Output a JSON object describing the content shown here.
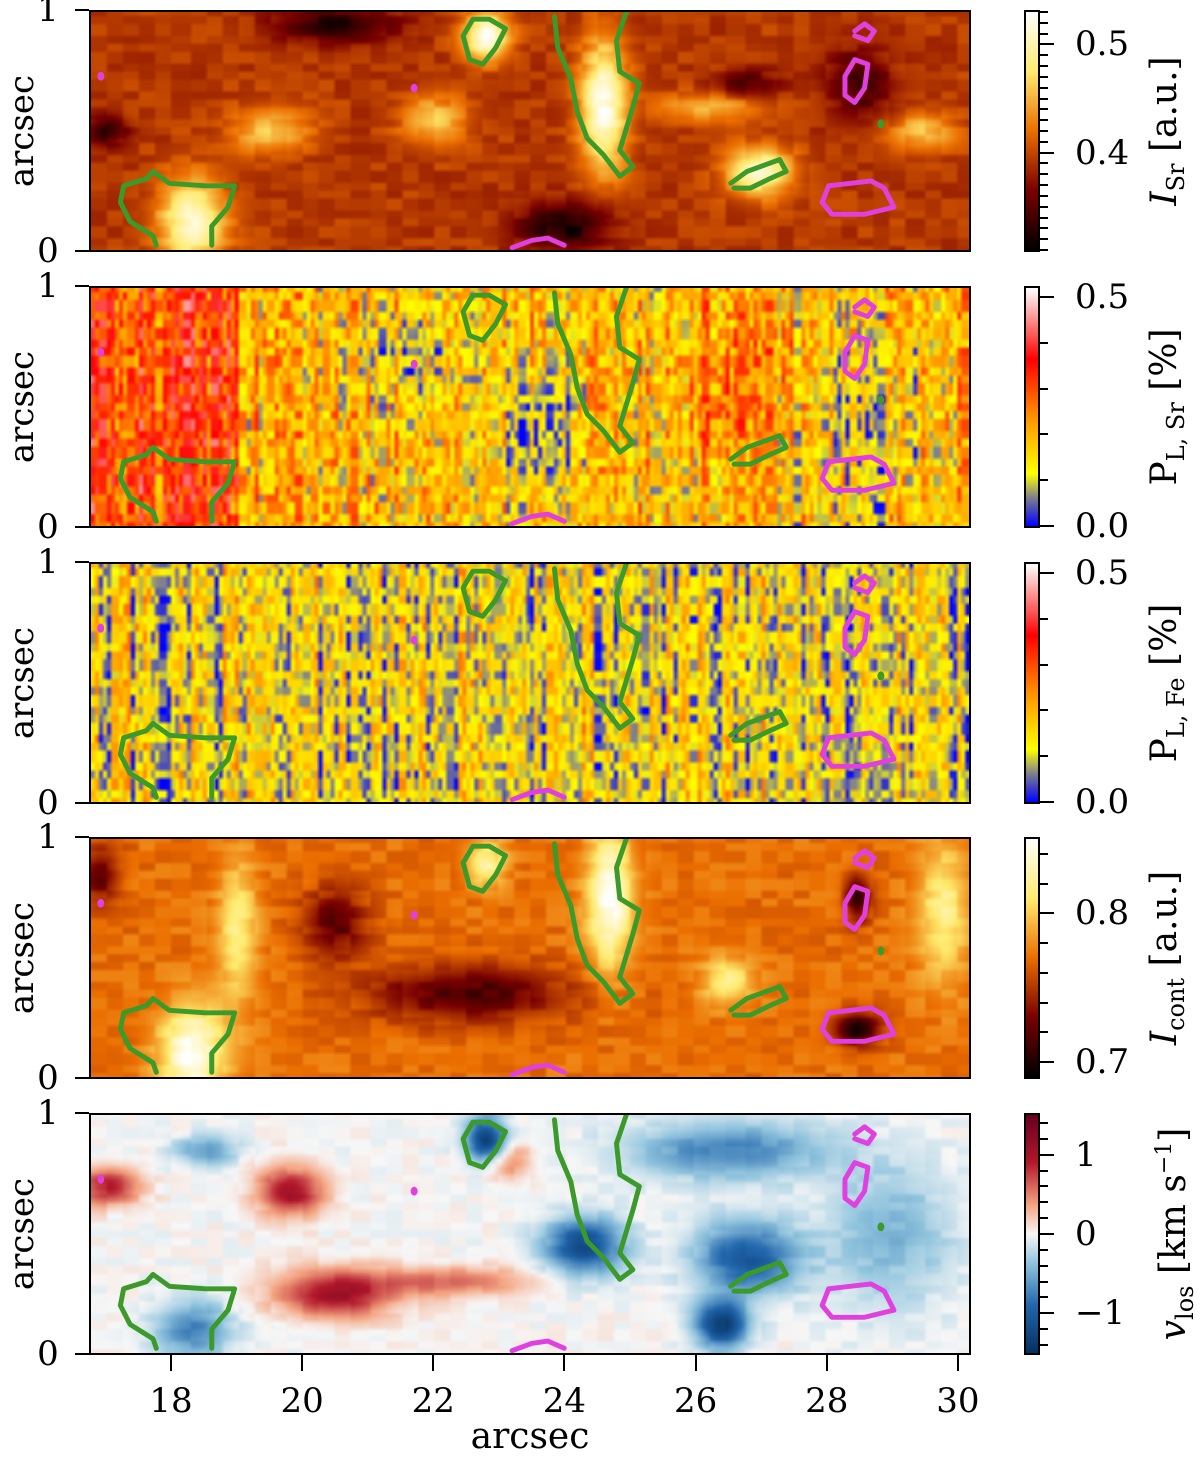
{
  "figure": {
    "x_axis": {
      "label": "arcsec",
      "ticks": [
        18,
        20,
        22,
        24,
        26,
        28,
        30
      ],
      "range": [
        16.75,
        30.2
      ]
    },
    "panels": [
      {
        "id": "I_Sr",
        "ylabel": "arcsec",
        "yticks": [
          "0",
          "1"
        ],
        "colorbar": {
          "label_main": "I",
          "label_sub": "Sr",
          "label_unit": " [a.u.]",
          "cmap": "afmhot",
          "range": [
            0.31,
            0.53
          ],
          "major_ticks": [
            {
              "v": 0.4,
              "label": "0.4"
            },
            {
              "v": 0.5,
              "label": "0.5"
            }
          ],
          "minor_step": 0.01
        }
      },
      {
        "id": "PL_Sr",
        "ylabel": "arcsec",
        "yticks": [
          "0",
          "1"
        ],
        "colorbar": {
          "label_main": "P",
          "label_sub": "L, Sr",
          "label_unit": " [%]",
          "cmap": "bgyr",
          "range": [
            0.0,
            0.52
          ],
          "major_ticks": [
            {
              "v": 0.0,
              "label": "0.0"
            },
            {
              "v": 0.5,
              "label": "0.5"
            }
          ],
          "minor_step": 0.1
        }
      },
      {
        "id": "PL_Fe",
        "ylabel": "arcsec",
        "yticks": [
          "0",
          "1"
        ],
        "colorbar": {
          "label_main": "P",
          "label_sub": "L, Fe",
          "label_unit": " [%]",
          "cmap": "bgyr",
          "range": [
            0.0,
            0.52
          ],
          "major_ticks": [
            {
              "v": 0.0,
              "label": "0.0"
            },
            {
              "v": 0.5,
              "label": "0.5"
            }
          ],
          "minor_step": 0.1
        }
      },
      {
        "id": "I_cont",
        "ylabel": "arcsec",
        "yticks": [
          "0",
          "1"
        ],
        "colorbar": {
          "label_main": "I",
          "label_sub": "cont",
          "label_unit": " [a.u.]",
          "cmap": "afmhot",
          "range": [
            0.69,
            0.85
          ],
          "major_ticks": [
            {
              "v": 0.7,
              "label": "0.7"
            },
            {
              "v": 0.8,
              "label": "0.8"
            }
          ],
          "minor_step": 0.02
        }
      },
      {
        "id": "v_los",
        "ylabel": "arcsec",
        "yticks": [
          "0",
          "1"
        ],
        "colorbar": {
          "label_main": "v",
          "label_sub": "los",
          "label_unit": " [km s",
          "label_sup": "−1",
          "label_end": "]",
          "cmap": "RdBu_r",
          "range": [
            -1.5,
            1.5
          ],
          "major_ticks": [
            {
              "v": -1,
              "label": "−1"
            },
            {
              "v": 0,
              "label": "0"
            },
            {
              "v": 1,
              "label": "1"
            }
          ],
          "minor_step": 0.2
        }
      }
    ],
    "contour_colors": {
      "green": "#3c9a2a",
      "magenta": "#e040e0"
    }
  },
  "chart_data": {
    "type": "heatmap",
    "title": "",
    "xlabel": "arcsec",
    "ylabel": "arcsec",
    "xlim": [
      16.75,
      30.2
    ],
    "ylim": [
      0,
      1
    ],
    "xticks": [
      18,
      20,
      22,
      24,
      26,
      28,
      30
    ],
    "yticks": [
      0,
      1
    ],
    "panels": [
      {
        "name": "I_Sr [a.u.]",
        "colorbar_range": [
          0.31,
          0.53
        ],
        "colorbar_ticks": [
          0.4,
          0.5
        ],
        "cmap": "afmhot"
      },
      {
        "name": "P_L,Sr [%]",
        "colorbar_range": [
          0.0,
          0.52
        ],
        "colorbar_ticks": [
          0.0,
          0.5
        ],
        "cmap": "blue-gray-yellow-red-white"
      },
      {
        "name": "P_L,Fe [%]",
        "colorbar_range": [
          0.0,
          0.52
        ],
        "colorbar_ticks": [
          0.0,
          0.5
        ],
        "cmap": "blue-gray-yellow-red-white"
      },
      {
        "name": "I_cont [a.u.]",
        "colorbar_range": [
          0.69,
          0.85
        ],
        "colorbar_ticks": [
          0.7,
          0.8
        ],
        "cmap": "afmhot"
      },
      {
        "name": "v_los [km s^-1]",
        "colorbar_range": [
          -1.5,
          1.5
        ],
        "colorbar_ticks": [
          -1,
          0,
          1
        ],
        "cmap": "RdBu_r"
      }
    ],
    "contours": {
      "green": [
        {
          "desc": "bright feature lower-left",
          "points": [
            [
              18.6,
              0.02
            ],
            [
              18.6,
              0.1
            ],
            [
              18.85,
              0.18
            ],
            [
              18.95,
              0.27
            ],
            [
              18.5,
              0.27
            ],
            [
              17.95,
              0.28
            ],
            [
              17.7,
              0.33
            ],
            [
              17.6,
              0.3
            ],
            [
              17.25,
              0.27
            ],
            [
              17.2,
              0.2
            ],
            [
              17.35,
              0.12
            ],
            [
              17.7,
              0.06
            ],
            [
              17.75,
              0.02
            ]
          ]
        },
        {
          "desc": "small loop near 22.8,0.9",
          "points": [
            [
              22.45,
              0.9
            ],
            [
              22.6,
              0.97
            ],
            [
              22.85,
              0.97
            ],
            [
              23.1,
              0.93
            ],
            [
              22.95,
              0.85
            ],
            [
              22.75,
              0.78
            ],
            [
              22.55,
              0.8
            ],
            [
              22.45,
              0.9
            ]
          ]
        },
        {
          "desc": "left branch of elongated feature",
          "points": [
            [
              23.85,
              0.98
            ],
            [
              23.9,
              0.85
            ],
            [
              24.1,
              0.72
            ],
            [
              24.2,
              0.58
            ],
            [
              24.35,
              0.47
            ],
            [
              24.6,
              0.4
            ],
            [
              24.85,
              0.31
            ]
          ]
        },
        {
          "desc": "right branch of elongated feature",
          "points": [
            [
              24.85,
              0.31
            ],
            [
              25.05,
              0.35
            ],
            [
              24.85,
              0.42
            ],
            [
              25.05,
              0.6
            ],
            [
              25.15,
              0.7
            ],
            [
              24.85,
              0.75
            ],
            [
              24.8,
              0.88
            ],
            [
              24.95,
              1.0
            ]
          ]
        },
        {
          "desc": "small feature near 27,0.3",
          "points": [
            [
              26.55,
              0.28
            ],
            [
              26.8,
              0.33
            ],
            [
              27.0,
              0.35
            ],
            [
              27.3,
              0.38
            ],
            [
              27.4,
              0.33
            ],
            [
              27.15,
              0.3
            ],
            [
              26.85,
              0.26
            ],
            [
              26.6,
              0.26
            ]
          ]
        },
        {
          "desc": "dot",
          "points": [
            [
              28.85,
              0.53
            ]
          ]
        }
      ],
      "magenta": [
        {
          "desc": "small loop near 28.6,0.9",
          "points": [
            [
              28.45,
              0.92
            ],
            [
              28.6,
              0.95
            ],
            [
              28.75,
              0.92
            ],
            [
              28.65,
              0.88
            ],
            [
              28.45,
              0.9
            ]
          ]
        },
        {
          "desc": "loop near 28.5,0.7",
          "points": [
            [
              28.3,
              0.73
            ],
            [
              28.45,
              0.8
            ],
            [
              28.65,
              0.78
            ],
            [
              28.6,
              0.68
            ],
            [
              28.45,
              0.62
            ],
            [
              28.3,
              0.65
            ],
            [
              28.3,
              0.73
            ]
          ]
        },
        {
          "desc": "trapezoid near 28.6,0.2",
          "points": [
            [
              28.05,
              0.27
            ],
            [
              28.7,
              0.29
            ],
            [
              28.9,
              0.26
            ],
            [
              29.05,
              0.18
            ],
            [
              28.6,
              0.15
            ],
            [
              28.1,
              0.15
            ],
            [
              27.95,
              0.2
            ],
            [
              28.05,
              0.27
            ]
          ]
        },
        {
          "desc": "arc at bottom near 23.7",
          "points": [
            [
              23.2,
              0.01
            ],
            [
              23.5,
              0.04
            ],
            [
              23.75,
              0.05
            ],
            [
              24.0,
              0.02
            ]
          ]
        },
        {
          "desc": "dot left",
          "points": [
            [
              16.9,
              0.73
            ]
          ]
        },
        {
          "desc": "dot",
          "points": [
            [
              21.7,
              0.68
            ]
          ]
        }
      ]
    }
  }
}
